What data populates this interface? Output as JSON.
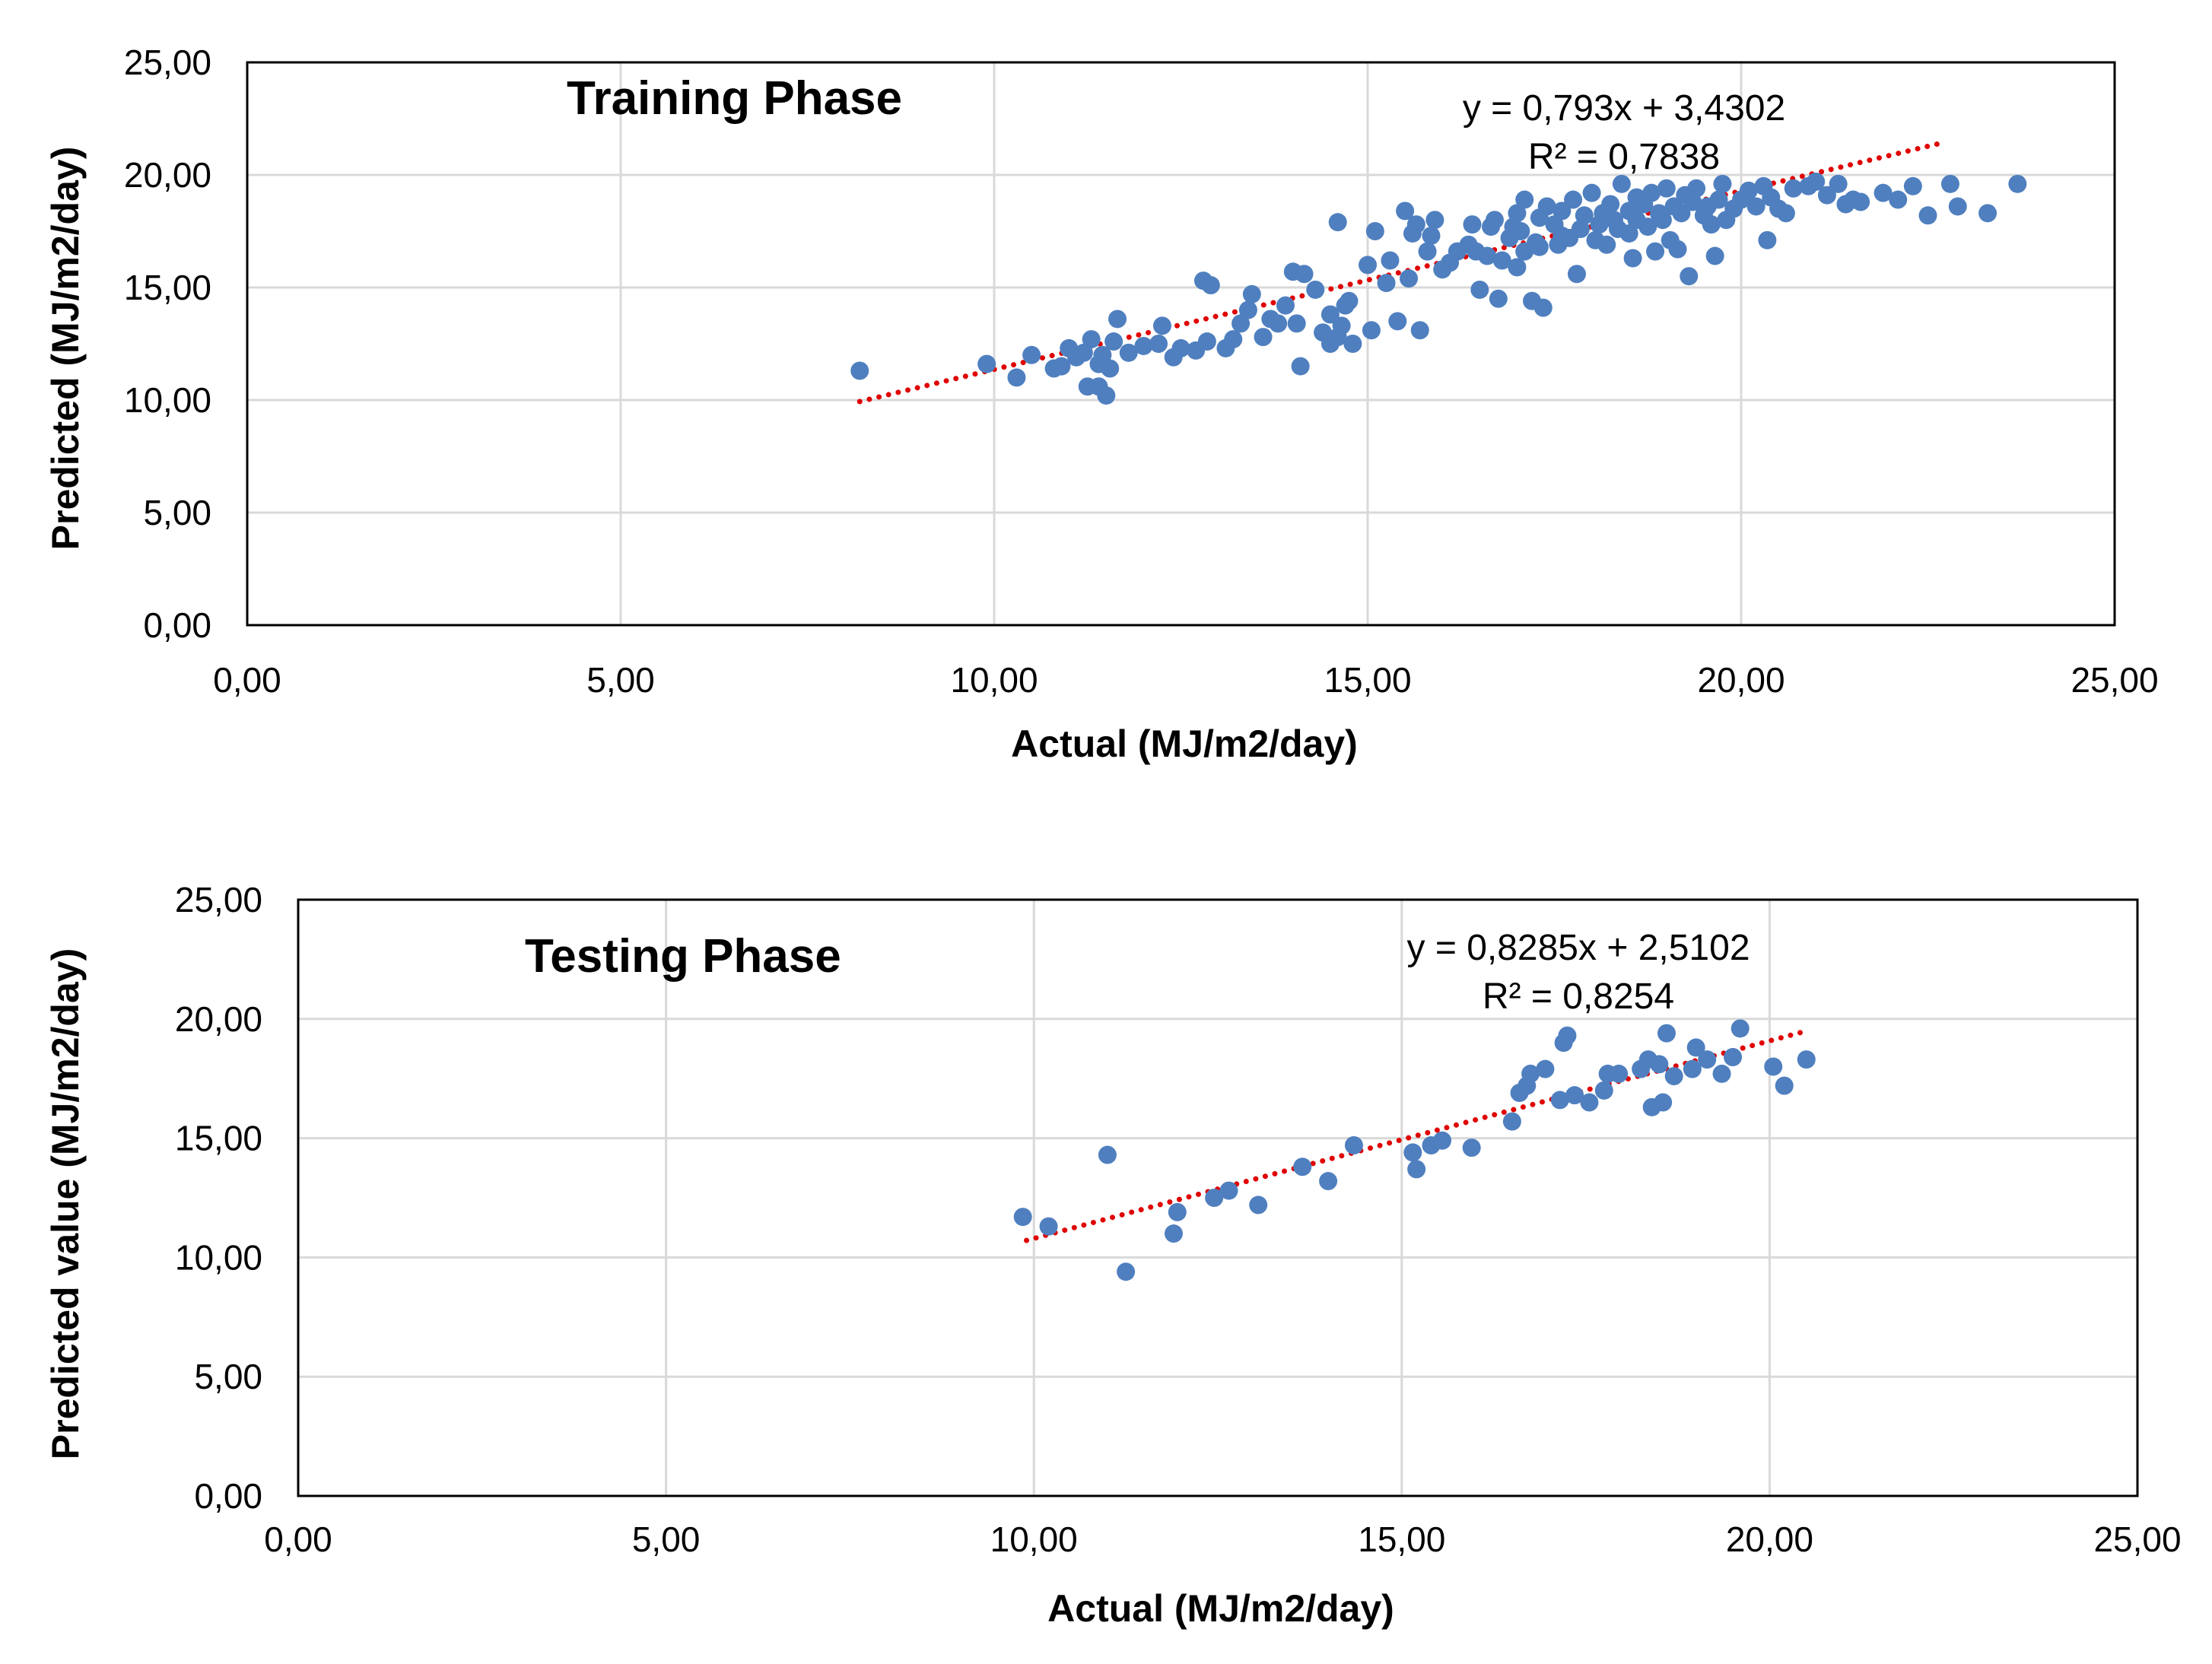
{
  "colors": {
    "points": "#4f7fbf",
    "trendline": "#e00000",
    "grid": "#d9d9d9",
    "frame": "#000000"
  },
  "chart_data": [
    {
      "type": "scatter",
      "title": "Training Phase",
      "xlabel": "Actual (MJ/m2/day)",
      "ylabel": "Predicted (MJ/m2/day)",
      "xlim": [
        0,
        25
      ],
      "ylim": [
        0,
        25
      ],
      "xticks": [
        "0,00",
        "5,00",
        "10,00",
        "15,00",
        "20,00",
        "25,00"
      ],
      "yticks": [
        "0,00",
        "5,00",
        "10,00",
        "15,00",
        "20,00",
        "25,00"
      ],
      "grid": true,
      "trendline": {
        "style": "dotted",
        "slope": 0.793,
        "intercept": 3.4302,
        "x_range": [
          8.2,
          22.7
        ],
        "equation": "y = 0,793x + 3,4302",
        "r2": "R² = 0,7838"
      },
      "points": [
        [
          8.2,
          11.3
        ],
        [
          9.9,
          11.6
        ],
        [
          10.3,
          11.0
        ],
        [
          10.5,
          12.0
        ],
        [
          10.8,
          11.4
        ],
        [
          10.9,
          11.5
        ],
        [
          11.0,
          12.3
        ],
        [
          11.1,
          11.9
        ],
        [
          11.2,
          12.1
        ],
        [
          11.3,
          12.7
        ],
        [
          11.25,
          10.6
        ],
        [
          11.4,
          10.6
        ],
        [
          11.4,
          11.6
        ],
        [
          11.45,
          12.0
        ],
        [
          11.5,
          10.2
        ],
        [
          11.55,
          11.4
        ],
        [
          11.6,
          12.6
        ],
        [
          11.65,
          13.6
        ],
        [
          11.8,
          12.1
        ],
        [
          12.0,
          12.4
        ],
        [
          12.2,
          12.5
        ],
        [
          12.25,
          13.3
        ],
        [
          12.4,
          11.9
        ],
        [
          12.5,
          12.3
        ],
        [
          12.7,
          12.2
        ],
        [
          12.8,
          15.3
        ],
        [
          12.9,
          15.1
        ],
        [
          12.85,
          12.6
        ],
        [
          13.1,
          12.3
        ],
        [
          13.2,
          12.7
        ],
        [
          13.3,
          13.4
        ],
        [
          13.4,
          14.0
        ],
        [
          13.45,
          14.7
        ],
        [
          13.6,
          12.8
        ],
        [
          13.7,
          13.6
        ],
        [
          13.8,
          13.4
        ],
        [
          13.9,
          14.2
        ],
        [
          14.0,
          15.7
        ],
        [
          14.05,
          13.4
        ],
        [
          14.1,
          11.5
        ],
        [
          14.15,
          15.6
        ],
        [
          14.3,
          14.9
        ],
        [
          14.4,
          13.0
        ],
        [
          14.5,
          13.8
        ],
        [
          14.5,
          12.5
        ],
        [
          14.6,
          12.8
        ],
        [
          14.65,
          13.3
        ],
        [
          14.7,
          14.2
        ],
        [
          14.75,
          14.4
        ],
        [
          14.8,
          12.5
        ],
        [
          14.6,
          17.9
        ],
        [
          15.0,
          16.0
        ],
        [
          15.05,
          13.1
        ],
        [
          15.1,
          17.5
        ],
        [
          15.25,
          15.2
        ],
        [
          15.3,
          16.2
        ],
        [
          15.4,
          13.5
        ],
        [
          15.5,
          18.4
        ],
        [
          15.55,
          15.4
        ],
        [
          15.6,
          17.4
        ],
        [
          15.65,
          17.8
        ],
        [
          15.7,
          13.1
        ],
        [
          15.8,
          16.6
        ],
        [
          15.85,
          17.3
        ],
        [
          15.9,
          18.0
        ],
        [
          16.0,
          15.8
        ],
        [
          16.1,
          16.1
        ],
        [
          16.2,
          16.6
        ],
        [
          16.35,
          16.9
        ],
        [
          16.45,
          16.6
        ],
        [
          16.5,
          14.9
        ],
        [
          16.6,
          16.4
        ],
        [
          16.65,
          17.7
        ],
        [
          16.7,
          18.0
        ],
        [
          16.75,
          14.5
        ],
        [
          16.8,
          16.2
        ],
        [
          16.9,
          17.2
        ],
        [
          16.95,
          17.7
        ],
        [
          17.0,
          15.9
        ],
        [
          17.0,
          18.3
        ],
        [
          17.05,
          17.5
        ],
        [
          17.1,
          16.6
        ],
        [
          17.2,
          14.4
        ],
        [
          17.25,
          17.0
        ],
        [
          17.3,
          16.8
        ],
        [
          17.3,
          18.1
        ],
        [
          17.35,
          14.1
        ],
        [
          17.4,
          18.6
        ],
        [
          17.5,
          17.8
        ],
        [
          17.55,
          16.9
        ],
        [
          17.6,
          18.4
        ],
        [
          17.7,
          17.2
        ],
        [
          17.75,
          18.9
        ],
        [
          17.8,
          15.6
        ],
        [
          17.85,
          17.6
        ],
        [
          17.9,
          18.2
        ],
        [
          18.0,
          19.2
        ],
        [
          18.05,
          17.1
        ],
        [
          18.1,
          17.8
        ],
        [
          18.15,
          18.3
        ],
        [
          18.2,
          16.9
        ],
        [
          18.25,
          18.7
        ],
        [
          18.3,
          18.0
        ],
        [
          18.35,
          17.6
        ],
        [
          18.4,
          19.6
        ],
        [
          18.5,
          17.4
        ],
        [
          18.5,
          18.4
        ],
        [
          18.55,
          16.3
        ],
        [
          18.6,
          18.0
        ],
        [
          18.7,
          18.7
        ],
        [
          18.75,
          17.7
        ],
        [
          18.8,
          19.2
        ],
        [
          18.85,
          16.6
        ],
        [
          18.9,
          18.3
        ],
        [
          18.95,
          18.0
        ],
        [
          19.0,
          19.4
        ],
        [
          19.05,
          17.1
        ],
        [
          19.1,
          18.6
        ],
        [
          19.15,
          16.7
        ],
        [
          19.2,
          18.3
        ],
        [
          19.25,
          19.1
        ],
        [
          19.3,
          15.5
        ],
        [
          19.35,
          18.8
        ],
        [
          19.4,
          19.4
        ],
        [
          19.5,
          18.2
        ],
        [
          19.55,
          18.6
        ],
        [
          19.6,
          17.8
        ],
        [
          19.65,
          16.4
        ],
        [
          19.7,
          18.9
        ],
        [
          19.75,
          19.6
        ],
        [
          19.8,
          18.0
        ],
        [
          19.9,
          18.5
        ],
        [
          20.0,
          18.9
        ],
        [
          20.1,
          19.3
        ],
        [
          20.2,
          18.6
        ],
        [
          20.3,
          19.5
        ],
        [
          20.35,
          17.1
        ],
        [
          20.4,
          19.0
        ],
        [
          20.5,
          18.5
        ],
        [
          20.6,
          18.3
        ],
        [
          20.7,
          19.4
        ],
        [
          20.9,
          19.5
        ],
        [
          21.0,
          19.7
        ],
        [
          21.15,
          19.1
        ],
        [
          21.3,
          19.6
        ],
        [
          21.4,
          18.7
        ],
        [
          21.5,
          18.9
        ],
        [
          21.6,
          18.8
        ],
        [
          21.9,
          19.2
        ],
        [
          22.1,
          18.9
        ],
        [
          22.3,
          19.5
        ],
        [
          22.5,
          18.2
        ],
        [
          22.8,
          19.6
        ],
        [
          22.9,
          18.6
        ],
        [
          23.3,
          18.3
        ],
        [
          23.7,
          19.6
        ],
        [
          18.6,
          19.0
        ],
        [
          17.6,
          17.3
        ],
        [
          16.4,
          17.8
        ],
        [
          17.1,
          18.9
        ]
      ]
    },
    {
      "type": "scatter",
      "title": "Testing Phase",
      "xlabel": "Actual (MJ/m2/day)",
      "ylabel": "Predicted value (MJ/m2/day)",
      "xlim": [
        0,
        25
      ],
      "ylim": [
        0,
        25
      ],
      "xticks": [
        "0,00",
        "5,00",
        "10,00",
        "15,00",
        "20,00",
        "25,00"
      ],
      "yticks": [
        "0,00",
        "5,00",
        "10,00",
        "15,00",
        "20,00",
        "25,00"
      ],
      "grid": true,
      "trendline": {
        "style": "dotted",
        "slope": 0.8285,
        "intercept": 2.5102,
        "x_range": [
          9.9,
          20.5
        ],
        "equation": "y = 0,8285x + 2,5102",
        "r2": "R² = 0,8254"
      },
      "points": [
        [
          9.85,
          11.7
        ],
        [
          10.2,
          11.3
        ],
        [
          11.0,
          14.3
        ],
        [
          11.25,
          9.4
        ],
        [
          11.9,
          11.0
        ],
        [
          11.95,
          11.9
        ],
        [
          12.45,
          12.5
        ],
        [
          12.65,
          12.8
        ],
        [
          13.05,
          12.2
        ],
        [
          13.65,
          13.8
        ],
        [
          14.0,
          13.2
        ],
        [
          14.35,
          14.7
        ],
        [
          15.15,
          14.4
        ],
        [
          15.2,
          13.7
        ],
        [
          15.4,
          14.7
        ],
        [
          15.55,
          14.9
        ],
        [
          15.95,
          14.6
        ],
        [
          16.5,
          15.7
        ],
        [
          16.6,
          16.9
        ],
        [
          16.7,
          17.2
        ],
        [
          16.75,
          17.7
        ],
        [
          16.95,
          17.9
        ],
        [
          17.15,
          16.6
        ],
        [
          17.2,
          19.0
        ],
        [
          17.25,
          19.3
        ],
        [
          17.35,
          16.8
        ],
        [
          17.55,
          16.5
        ],
        [
          17.75,
          17.0
        ],
        [
          17.8,
          17.7
        ],
        [
          17.95,
          17.7
        ],
        [
          18.25,
          17.9
        ],
        [
          18.35,
          18.3
        ],
        [
          18.4,
          16.3
        ],
        [
          18.5,
          18.1
        ],
        [
          18.55,
          16.5
        ],
        [
          18.6,
          19.4
        ],
        [
          18.7,
          17.6
        ],
        [
          18.95,
          17.9
        ],
        [
          19.0,
          18.8
        ],
        [
          19.15,
          18.3
        ],
        [
          19.35,
          17.7
        ],
        [
          19.5,
          18.4
        ],
        [
          19.6,
          19.6
        ],
        [
          20.05,
          18.0
        ],
        [
          20.2,
          17.2
        ],
        [
          20.5,
          18.3
        ]
      ]
    }
  ]
}
